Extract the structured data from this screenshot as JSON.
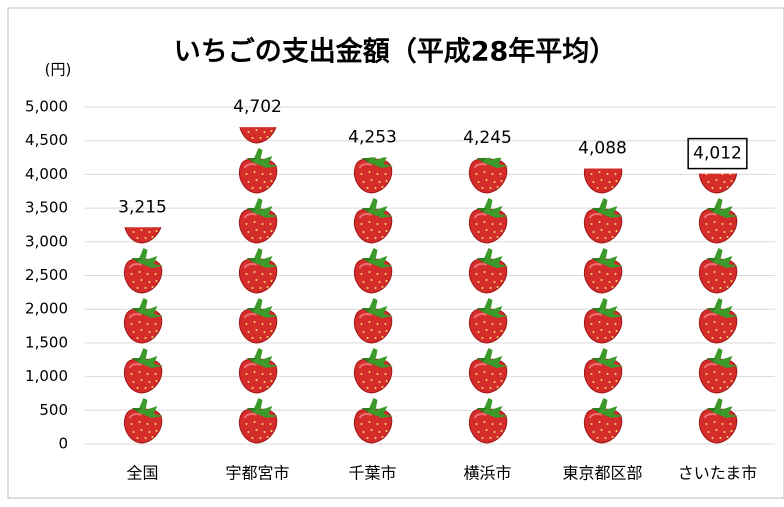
{
  "chart_data": {
    "type": "pictograph",
    "title": "いちごの支出金額（平成28年平均）",
    "y_label": "(円)",
    "categories": [
      "全国",
      "宇都宮市",
      "千葉市",
      "横浜市",
      "東京都区部",
      "さいたま市"
    ],
    "values": [
      3215,
      4702,
      4253,
      4245,
      4088,
      4012
    ],
    "value_labels": [
      "3,215",
      "4,702",
      "4,253",
      "4,245",
      "4,088",
      "4,012"
    ],
    "ylim": [
      0,
      5000
    ],
    "yticks": [
      0,
      500,
      {
        "value": 1000,
        "label": "1,000"
      },
      {
        "value": 1500,
        "label": "1,500"
      },
      {
        "value": 2000,
        "label": "2,000"
      },
      {
        "value": 2500,
        "label": "2,500"
      },
      {
        "value": 3000,
        "label": "3,000"
      },
      {
        "value": 3500,
        "label": "3,500"
      },
      {
        "value": 4000,
        "label": "4,000"
      },
      {
        "value": 4500,
        "label": "4,500"
      },
      {
        "value": 5000,
        "label": "5,000"
      }
    ],
    "grid": true,
    "color": "#d42b2b"
  }
}
